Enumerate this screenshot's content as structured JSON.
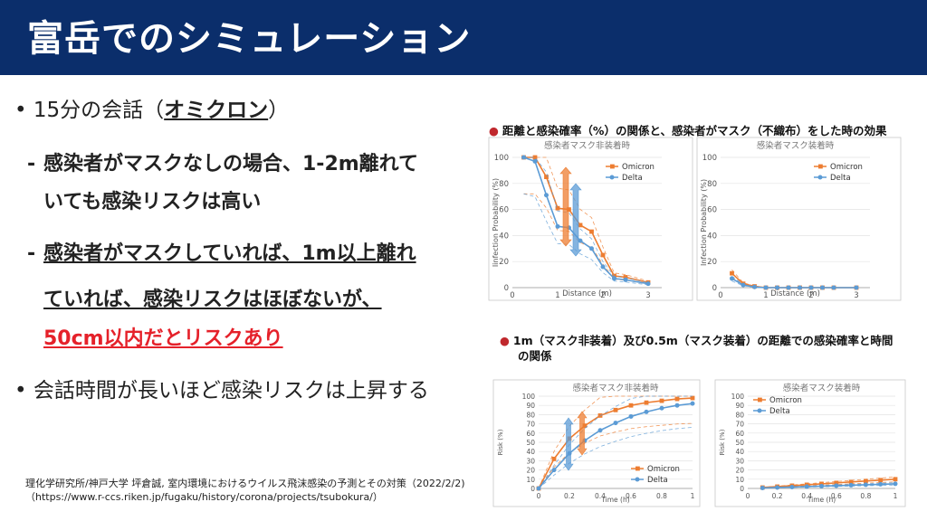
{
  "title": "富岳でのシミュレーション",
  "bullets": {
    "b1_pre": "15分の会話（",
    "b1_em": "オミクロン",
    "b1_post": "）",
    "d1_line1": "感染者がマスクなしの場合、1-2m離れて",
    "d1_line2": "いても感染リスクは高い",
    "d2_line1": "感染者がマスクしていれば、1m以上離れ",
    "d2_line2": "ていれば、感染リスクはほぼないが、",
    "d2_line3": "50cm以内だとリスクあり",
    "b2": "会話時間が長いほど感染リスクは上昇する"
  },
  "source": {
    "line1": "理化学研究所/神戸大学 坪倉誠, 室内環境におけるウイルス飛沫感染の予測とその対策（2022/2/2)",
    "line2": "（https://www.r-ccs.riken.jp/fugaku/history/corona/projects/tsubokura/）"
  },
  "captions": {
    "top": "距離と感染確率（%）の関係と、感染者がマスク（不織布）をした時の効果",
    "bottom_line1": "1m（マスク非装着）及び0.5m（マスク装着）の距離での感染確率と時間",
    "bottom_line2": "の関係"
  },
  "colors": {
    "omicron": "#ed7d31",
    "delta": "#5b9bd5",
    "title_bg": "#0b2e6b",
    "accent_red": "#e5212a"
  },
  "chart_data": [
    {
      "type": "line",
      "title": "感染者マスク非装着時",
      "xlabel": "Distance (m)",
      "ylabel": "Iinfection Probability (%)",
      "xlim": [
        0,
        3.3
      ],
      "ylim": [
        0,
        100
      ],
      "xticks": [
        "0",
        "1",
        "2",
        "3"
      ],
      "yticks": [
        "0",
        "20",
        "40",
        "60",
        "80",
        "100"
      ],
      "legend": "top-right",
      "series": [
        {
          "name": "Omicron",
          "x": [
            0.25,
            0.5,
            0.75,
            1,
            1.25,
            1.5,
            1.75,
            2,
            2.25,
            2.5,
            3
          ],
          "values": [
            100,
            100,
            85,
            61,
            60,
            48,
            43,
            25,
            9,
            8,
            4
          ]
        },
        {
          "name": "Delta",
          "x": [
            0.25,
            0.5,
            0.75,
            1,
            1.25,
            1.5,
            1.75,
            2,
            2.25,
            2.5,
            3
          ],
          "values": [
            100,
            97,
            71,
            47,
            46,
            36,
            30,
            16,
            7,
            6,
            3
          ]
        }
      ]
    },
    {
      "type": "line",
      "title": "感染者マスク装着時",
      "xlabel": "Distance (m)",
      "ylabel": "Infection Probability (%)",
      "xlim": [
        0,
        3.3
      ],
      "ylim": [
        0,
        100
      ],
      "xticks": [
        "0",
        "1",
        "2",
        "3"
      ],
      "yticks": [
        "0",
        "20",
        "40",
        "60",
        "80",
        "100"
      ],
      "legend": "top-right",
      "series": [
        {
          "name": "Omicron",
          "x": [
            0.25,
            0.5,
            0.75,
            1,
            1.25,
            1.5,
            1.75,
            2,
            2.25,
            2.5,
            3
          ],
          "values": [
            11,
            3,
            1,
            0,
            0,
            0,
            0,
            0,
            0,
            0,
            0
          ]
        },
        {
          "name": "Delta",
          "x": [
            0.25,
            0.5,
            0.75,
            1,
            1.25,
            1.5,
            1.75,
            2,
            2.25,
            2.5,
            3
          ],
          "values": [
            7,
            2,
            0.5,
            0,
            0,
            0,
            0,
            0,
            0,
            0,
            0
          ]
        }
      ]
    },
    {
      "type": "line",
      "title": "感染者マスク非装着時",
      "xlabel": "Time (h)",
      "ylabel": "Risk (%)",
      "xlim": [
        0,
        1
      ],
      "ylim": [
        0,
        100
      ],
      "xticks": [
        "0",
        "0.2",
        "0.4",
        "0.6",
        "0.8",
        "1"
      ],
      "yticks": [
        "0",
        "10",
        "20",
        "30",
        "40",
        "50",
        "60",
        "70",
        "80",
        "90",
        "100"
      ],
      "legend": "bottom-right",
      "series": [
        {
          "name": "Omicron",
          "x": [
            0,
            0.1,
            0.2,
            0.3,
            0.4,
            0.5,
            0.6,
            0.7,
            0.8,
            0.9,
            1
          ],
          "values": [
            0,
            32,
            54,
            68,
            79,
            85,
            90,
            93,
            95,
            97,
            98
          ]
        },
        {
          "name": "Delta",
          "x": [
            0,
            0.1,
            0.2,
            0.3,
            0.4,
            0.5,
            0.6,
            0.7,
            0.8,
            0.9,
            1
          ],
          "values": [
            0,
            20,
            38,
            52,
            63,
            71,
            78,
            83,
            87,
            90,
            92
          ]
        }
      ]
    },
    {
      "type": "line",
      "title": "感染者マスク装着時",
      "xlabel": "Time (h)",
      "ylabel": "Risk (%)",
      "xlim": [
        0,
        1
      ],
      "ylim": [
        0,
        100
      ],
      "xticks": [
        "0",
        "0.2",
        "0.4",
        "0.6",
        "0.8",
        "1"
      ],
      "yticks": [
        "0",
        "10",
        "20",
        "30",
        "40",
        "50",
        "60",
        "70",
        "80",
        "90",
        "100"
      ],
      "legend": "top-left",
      "series": [
        {
          "name": "Omicron",
          "x": [
            0.1,
            0.2,
            0.3,
            0.4,
            0.5,
            0.6,
            0.7,
            0.8,
            0.9,
            1
          ],
          "values": [
            1,
            2,
            3,
            4,
            5,
            6,
            7,
            8,
            9,
            10
          ]
        },
        {
          "name": "Delta",
          "x": [
            0.1,
            0.2,
            0.3,
            0.4,
            0.5,
            0.6,
            0.7,
            0.8,
            0.9,
            1
          ],
          "values": [
            0.5,
            1,
            1.5,
            2,
            2.5,
            3,
            3.5,
            4,
            4.5,
            5
          ]
        }
      ]
    }
  ]
}
